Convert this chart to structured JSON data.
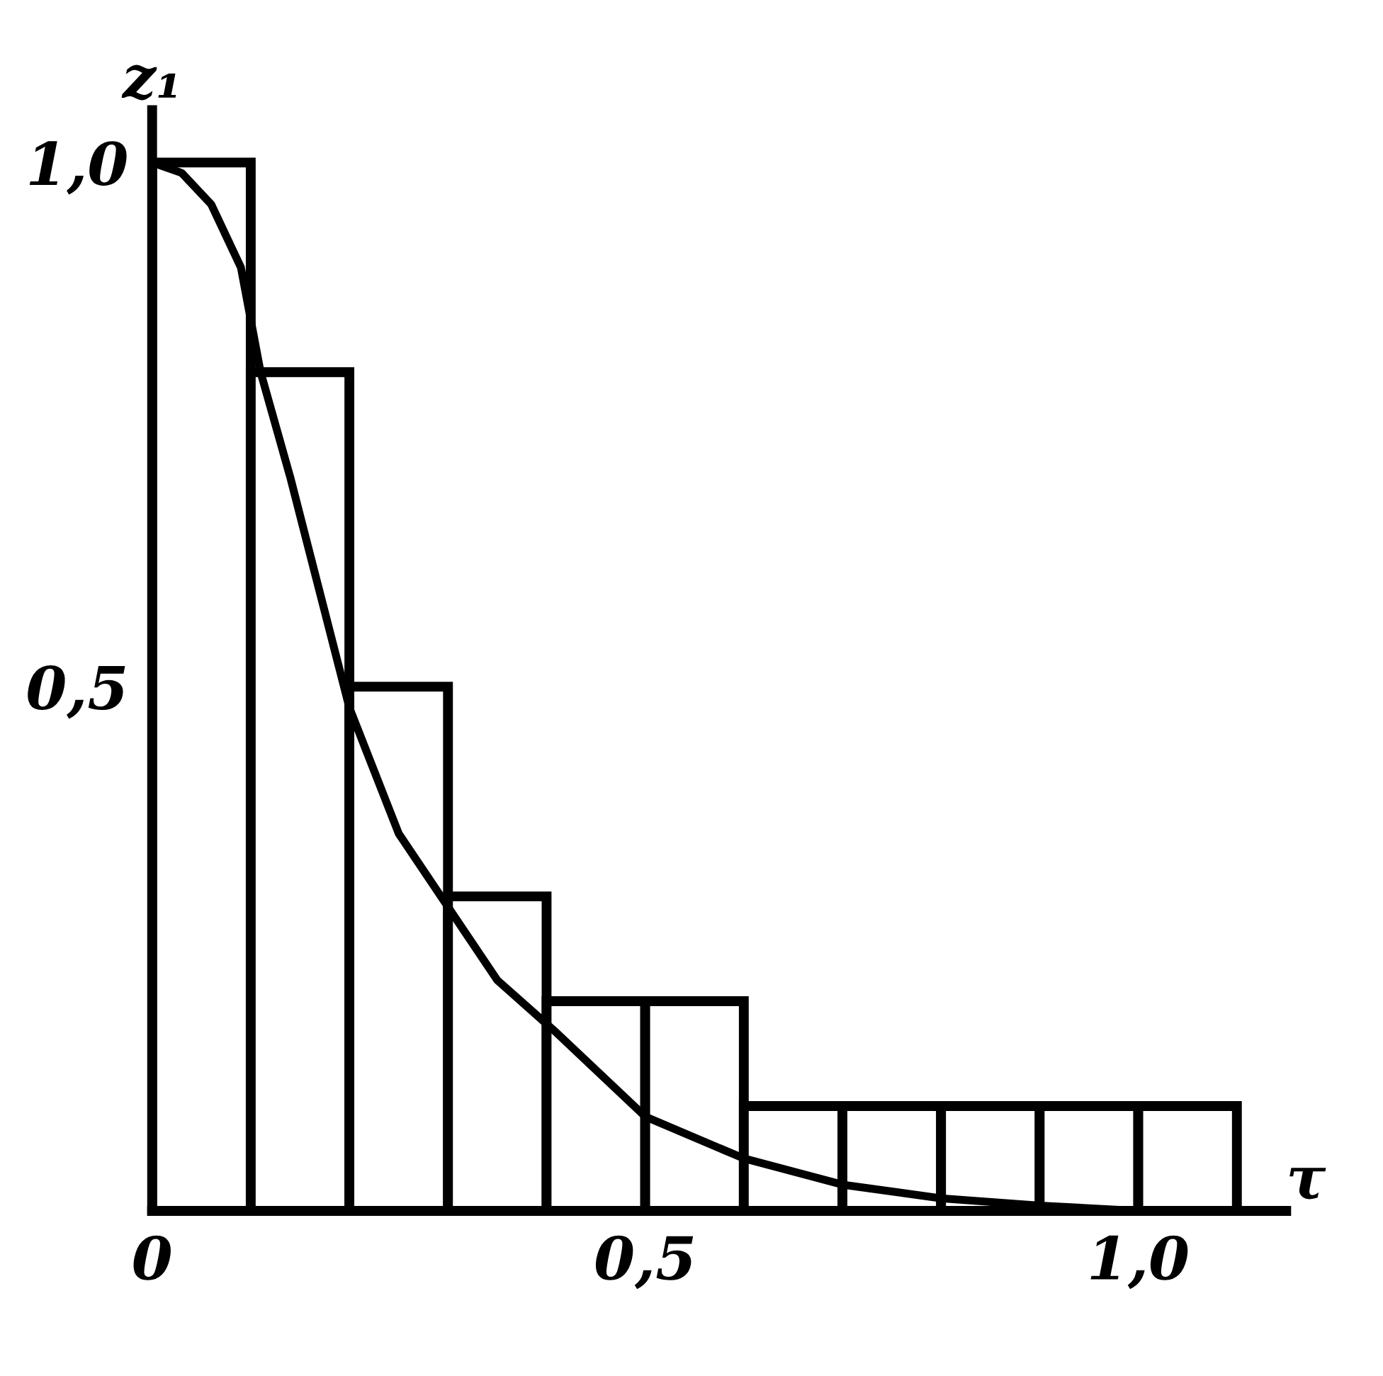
{
  "chart_data": {
    "type": "histogram",
    "xlabel": "τ",
    "ylabel": "z₁",
    "bins": [
      0,
      0.1,
      0.2,
      0.3,
      0.4,
      0.5,
      0.6,
      0.7,
      0.8,
      0.9,
      1.0,
      1.1
    ],
    "values": [
      1.0,
      0.8,
      0.5,
      0.3,
      0.2,
      0.2,
      0.1,
      0.1,
      0.1,
      0.1,
      0.1
    ],
    "color": "#ffffff",
    "series": [
      {
        "type": "line",
        "color": "#000000",
        "x": [
          0,
          0.03,
          0.06,
          0.09,
          0.11,
          0.14,
          0.17,
          0.2,
          0.25,
          0.3,
          0.35,
          0.41,
          0.5,
          0.6,
          0.7,
          0.8,
          0.9,
          1.0
        ],
        "values": [
          1.0,
          0.99,
          0.96,
          0.9,
          0.8,
          0.7,
          0.59,
          0.48,
          0.36,
          0.29,
          0.22,
          0.17,
          0.09,
          0.05,
          0.025,
          0.012,
          0.005,
          0.0
        ]
      }
    ],
    "xlim": [
      0,
      1.15
    ],
    "ylim": [
      0,
      1.05
    ],
    "xticks": [
      0,
      {
        "value": 0.5,
        "label": "0,5"
      },
      {
        "value": 1.0,
        "label": "1,0"
      }
    ],
    "yticks": [
      {
        "value": 0.5,
        "label": "0,5"
      },
      {
        "value": 1.0,
        "label": "1,0"
      }
    ],
    "grid": false,
    "legend": false
  }
}
